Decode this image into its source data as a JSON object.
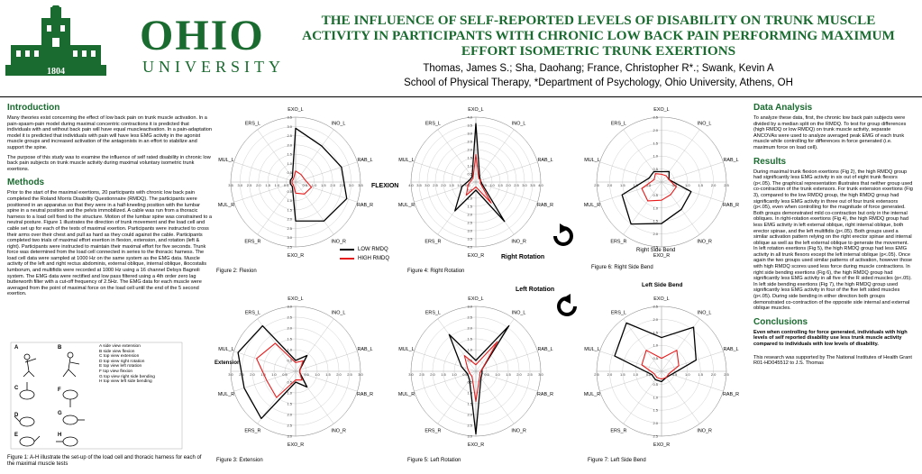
{
  "header": {
    "logo_year": "1804",
    "wordmark_top": "OHIO",
    "wordmark_bottom": "UNIVERSITY",
    "title": "THE INFLUENCE OF SELF-REPORTED LEVELS OF DISABILITY ON TRUNK MUSCLE ACTIVITY IN PARTICIPANTS WITH CHRONIC LOW BACK PAIN PERFORMING MAXIMUM EFFORT ISOMETRIC TRUNK EXERTIONS",
    "authors": "Thomas, James S.; Sha, Daohang; France, Christopher R*.; Swank, Kevin A",
    "affiliation": "School of Physical Therapy, *Department of Psychology,  Ohio University,  Athens, OH"
  },
  "left": {
    "intro_heading": "Introduction",
    "intro_p1": "Many theories exist concerning the effect of low back pain on trunk muscle activation. In a pain-spasm-pain model during maximal concentric contractions it is predicted that individuals with and without back pain will have equal muscleactivation. In a pain-adaptation model it is predicted that individuals with pain will have less EMG activity in the agonist muscle groups and increased activation of the antagonists in an effort to stabilize and support the spine.",
    "intro_p2": "The purpose of this study was to examine the influence of self rated disability in chronic low back pain subjects on trunk muscle activity during maximal voluntary isometric trunk exertions.",
    "methods_heading": "Methods",
    "methods_p1": "Prior to the start of the maximal exertions, 20 participants with chronic low back pain completed the Roland Morris Disability Questionnaire (RMDQ). The participants were positioned in an apparatus so that they were in a half-kneeling position with the lumbar spine in a neutral position and the pelvis immobilized. A cable was run from a thoracic harness to a load cell fixed to the structure. Motion of the lumbar spine was constrained to a neutral posture. Figure 1 illustrates the direction of trunk movement and the load cell and cable set up for each of the tests of maximal exertion. Participants were instructed to cross their arms over their chest and pull as hard as they could against the cable. Participants completed two trials of maximal effort exertion in flexion, extension, and rotation (left & right). Participants were instructed to maintain their maximal effort for five seconds. Trunk force was determined from the load cell connected in series to the thoracic harness. The load cell data were sampled at 1000 Hz on the same system as the EMG data. Muscle activity of the left and right rectus abdominis, external oblique, internal oblique, iliocostalis lumborum, and multifidis were recorded at 1000 Hz using a 16 channel Delsys Bagnoli system. The EMG data were rectified and low pass filtered using a 4th order zero lag butterworth filter with a cut-off frequency of 2.5Hz. The EMG data for each muscle were averaged from the point of maximal force on the load cell until the end of the 5 second exertion.",
    "fig1_labels": [
      "A",
      "B",
      "C",
      "D",
      "E",
      "F",
      "G",
      "H"
    ],
    "fig1_list": [
      "A side view extension",
      "B side view flexion",
      "C top view extension",
      "D top view right rotation",
      "E top view left rotation",
      "F top view flexion",
      "G top view right side bending",
      "H top view left side bending"
    ],
    "fig1_caption": "Figure 1: A-H illustrate the set-up of the load cell and thoracic harness for each of the maximal muscle tests"
  },
  "right": {
    "data_heading": "Data Analysis",
    "data_p": "To analyze these data, first, the chronic low back pain subjects were divided by a median split on the RMDQ. To test for group differences (high RMDQ or low RMDQ) on trunk muscle activity, separate ANCOVAs were used to analyze averaged peak EMG of each trunk muscle while controlling for differences in force generated (i.e. maximum force on load cell).",
    "results_heading": "Results",
    "results_p": "During maximal trunk flexion exertions (Fig 2), the high RMDQ group had significantly less EMG activity in six out of eight trunk flexors (p<.05). The graphical representation illustrates that neither group used co-contraction of the trunk extensors. For trunk extension exertions (Fig 3), compared to the low RMDQ group, the high RMDQ group had significantly less EMG activity in three out of four trunk extensors (p<.05), even when controlling for the magnitude of force generated. Both groups demonstrated mild co-contraction but only in the internal obliques. In right-rotation exertions (Fig 4), the high RMDQ group had less EMG activity in left external oblique, right internal oblique, both erector spinae, and the left multifidis (p<.05). Both groups used a similar activation pattern relying on the right erector spinae and internal oblique as well as the left external oblique to generate the movement. In left rotation exertions (Fig 5), the high RMDQ group had less EMG activity in all trunk flexors except the left internal oblique (p<.05). Once again the two groups used similar patterns of activation, however those with high RMDQ scores used less force during muscle contractions. In right side bending exertions (Fig 6), the high RMDQ group had significantly less EMG activity in all five of the R sided muscles (p<.05). In left side bending exertions (Fig 7), the high RMDQ group used significantly less EMG activity in four of the five left sided muscles (p<.05). During side bending in either direction both groups demonstrated co-contraction of the opposite side internal and external oblique muscles.",
    "conclusions_heading": "Conclusions",
    "conclusions_p": "Even when controlling for force generated, individuals with high levels of self reported disability use less trunk muscle activity compared to individuals with low levels of disability.",
    "support": "This research was supported by The National Institutes of Health Grant R01-HD045512 to J.S. Thomas"
  },
  "legend": {
    "low": "LOW RMDQ",
    "high": "HIGH RMDQ"
  },
  "colors": {
    "brand_green": "#1a6b2f",
    "low_series": "#000000",
    "high_series": "#e8191a"
  },
  "chart_data": [
    {
      "type": "radar",
      "id": "fig2",
      "caption": "Figure 2: Flexion",
      "side_label": "FLEXION",
      "axes": [
        "EXO_L",
        "INO_L",
        "RAB_L",
        "RAB_R",
        "INO_R",
        "EXO_R",
        "ERS_R",
        "MUL_R",
        "MUL_L",
        "ERS_L"
      ],
      "rmax": 3.5,
      "ticks": [
        "0.5",
        "1.0",
        "1.5",
        "2.0",
        "2.5",
        "3.0",
        "3.5"
      ],
      "series": [
        {
          "name": "LOW RMDQ",
          "values": [
            2.9,
            2.4,
            2.6,
            2.9,
            2.6,
            2.1,
            0.3,
            0.3,
            0.3,
            0.3
          ]
        },
        {
          "name": "HIGH RMDQ",
          "values": [
            0.6,
            0.5,
            0.5,
            0.9,
            0.8,
            0.6,
            0.2,
            0.2,
            0.2,
            0.2
          ]
        }
      ]
    },
    {
      "type": "radar",
      "id": "fig3",
      "caption": "Figure 3: Extension",
      "side_label": "Extension",
      "axes": [
        "EXO_L",
        "INO_L",
        "RAB_L",
        "RAB_R",
        "INO_R",
        "EXO_R",
        "ERS_R",
        "MUL_R",
        "MUL_L",
        "ERS_L"
      ],
      "rmax": 3.0,
      "ticks": [
        "0.5",
        "1.0",
        "1.5",
        "2.0",
        "2.5",
        "3.0"
      ],
      "series": [
        {
          "name": "LOW RMDQ",
          "values": [
            0.5,
            0.9,
            0.2,
            0.2,
            0.9,
            0.5,
            2.7,
            2.5,
            2.8,
            2.6
          ]
        },
        {
          "name": "HIGH RMDQ",
          "values": [
            0.4,
            0.6,
            0.2,
            0.2,
            0.5,
            0.4,
            1.5,
            1.4,
            1.9,
            1.6
          ]
        }
      ]
    },
    {
      "type": "radar",
      "id": "fig4",
      "caption": "Figure 4: Right Rotation",
      "side_label": "Right Rotation",
      "axes": [
        "EXO_L",
        "INO_L",
        "RAB_L",
        "RAB_R",
        "INO_R",
        "EXO_R",
        "ERS_R",
        "MUL_R",
        "MUL_L",
        "ERS_L"
      ],
      "rmax": 4.0,
      "ticks": [
        "0.5",
        "1.0",
        "1.5",
        "2.0",
        "2.5",
        "3.0",
        "3.5",
        "4.0"
      ],
      "series": [
        {
          "name": "LOW RMDQ",
          "values": [
            3.6,
            0.4,
            0.3,
            0.4,
            3.0,
            0.5,
            2.2,
            0.9,
            0.4,
            0.4
          ]
        },
        {
          "name": "HIGH RMDQ",
          "values": [
            1.7,
            0.3,
            0.3,
            0.3,
            1.6,
            0.3,
            1.0,
            0.5,
            0.3,
            0.3
          ]
        }
      ]
    },
    {
      "type": "radar",
      "id": "fig5",
      "caption": "Figure 5: Left Rotation",
      "side_label": "Left Rotation",
      "axes": [
        "EXO_L",
        "INO_L",
        "RAB_L",
        "RAB_R",
        "INO_R",
        "EXO_R",
        "ERS_R",
        "MUL_R",
        "MUL_L",
        "ERS_L"
      ],
      "rmax": 3.0,
      "ticks": [
        "0.5",
        "1.0",
        "1.5",
        "2.0",
        "2.5",
        "3.0"
      ],
      "series": [
        {
          "name": "LOW RMDQ",
          "values": [
            0.5,
            2.6,
            0.3,
            0.3,
            0.4,
            2.9,
            0.5,
            0.4,
            0.7,
            2.1
          ]
        },
        {
          "name": "HIGH RMDQ",
          "values": [
            0.3,
            1.7,
            0.3,
            0.2,
            0.3,
            1.4,
            0.3,
            0.3,
            0.4,
            0.9
          ]
        }
      ]
    },
    {
      "type": "radar",
      "id": "fig6",
      "caption": "Figure 6: Right Side Bend",
      "side_label": "Right Side Bend",
      "axes": [
        "EXO_L",
        "INO_L",
        "RAB_L",
        "RAB_R",
        "INO_R",
        "EXO_R",
        "ERS_R",
        "MUL_R",
        "MUL_L",
        "ERS_L"
      ],
      "rmax": 2.5,
      "ticks": [
        "0.5",
        "1.0",
        "1.5",
        "2.0",
        "2.5"
      ],
      "series": [
        {
          "name": "LOW RMDQ",
          "values": [
            0.4,
            0.5,
            0.3,
            1.2,
            1.3,
            1.6,
            2.0,
            1.6,
            0.5,
            0.5
          ]
        },
        {
          "name": "HIGH RMDQ",
          "values": [
            0.3,
            0.3,
            0.3,
            0.6,
            0.6,
            0.7,
            0.9,
            0.8,
            0.3,
            0.4
          ]
        }
      ]
    },
    {
      "type": "radar",
      "id": "fig7",
      "caption": "Figure 7: Left Side Bend",
      "side_label": "Left Side Bend",
      "axes": [
        "EXO_L",
        "INO_L",
        "RAB_L",
        "RAB_R",
        "INO_R",
        "EXO_R",
        "ERS_R",
        "MUL_R",
        "MUL_L",
        "ERS_L"
      ],
      "rmax": 2.5,
      "ticks": [
        "0.5",
        "1.0",
        "1.5",
        "2.0",
        "2.5"
      ],
      "series": [
        {
          "name": "LOW RMDQ",
          "values": [
            1.3,
            2.1,
            1.4,
            0.4,
            0.3,
            0.4,
            0.4,
            0.4,
            1.9,
            2.3
          ]
        },
        {
          "name": "HIGH RMDQ",
          "values": [
            0.5,
            1.0,
            0.7,
            0.3,
            0.3,
            0.3,
            0.3,
            0.3,
            0.8,
            1.0
          ]
        }
      ]
    }
  ]
}
